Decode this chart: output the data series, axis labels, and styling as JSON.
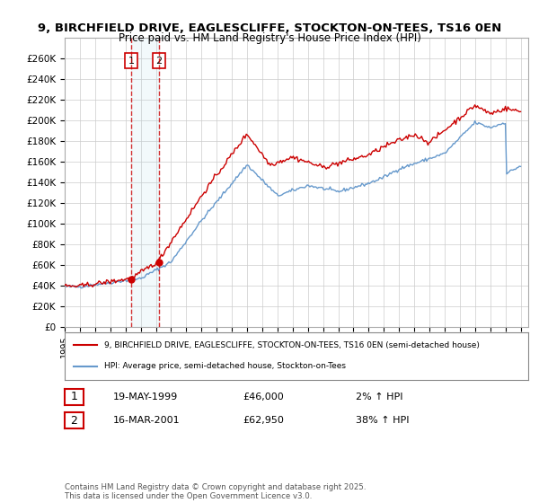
{
  "title": "9, BIRCHFIELD DRIVE, EAGLESCLIFFE, STOCKTON-ON-TEES, TS16 0EN",
  "subtitle": "Price paid vs. HM Land Registry's House Price Index (HPI)",
  "legend_line1": "9, BIRCHFIELD DRIVE, EAGLESCLIFFE, STOCKTON-ON-TEES, TS16 0EN (semi-detached house)",
  "legend_line2": "HPI: Average price, semi-detached house, Stockton-on-Tees",
  "footer": "Contains HM Land Registry data © Crown copyright and database right 2025.\nThis data is licensed under the Open Government Licence v3.0.",
  "transaction1_label": "1",
  "transaction1_date": "19-MAY-1999",
  "transaction1_price": "£46,000",
  "transaction1_hpi": "2% ↑ HPI",
  "transaction2_label": "2",
  "transaction2_date": "16-MAR-2001",
  "transaction2_price": "£62,950",
  "transaction2_hpi": "38% ↑ HPI",
  "property_color": "#cc0000",
  "hpi_color": "#6699cc",
  "background_color": "#ffffff",
  "grid_color": "#cccccc",
  "ylim_min": 0,
  "ylim_max": 280000,
  "yticks": [
    0,
    20000,
    40000,
    60000,
    80000,
    100000,
    120000,
    140000,
    160000,
    180000,
    200000,
    220000,
    240000,
    260000
  ],
  "transaction1_x": 1999.38,
  "transaction1_y": 46000,
  "transaction2_x": 2001.21,
  "transaction2_y": 62950,
  "xmin": 1995,
  "xmax": 2025.5
}
